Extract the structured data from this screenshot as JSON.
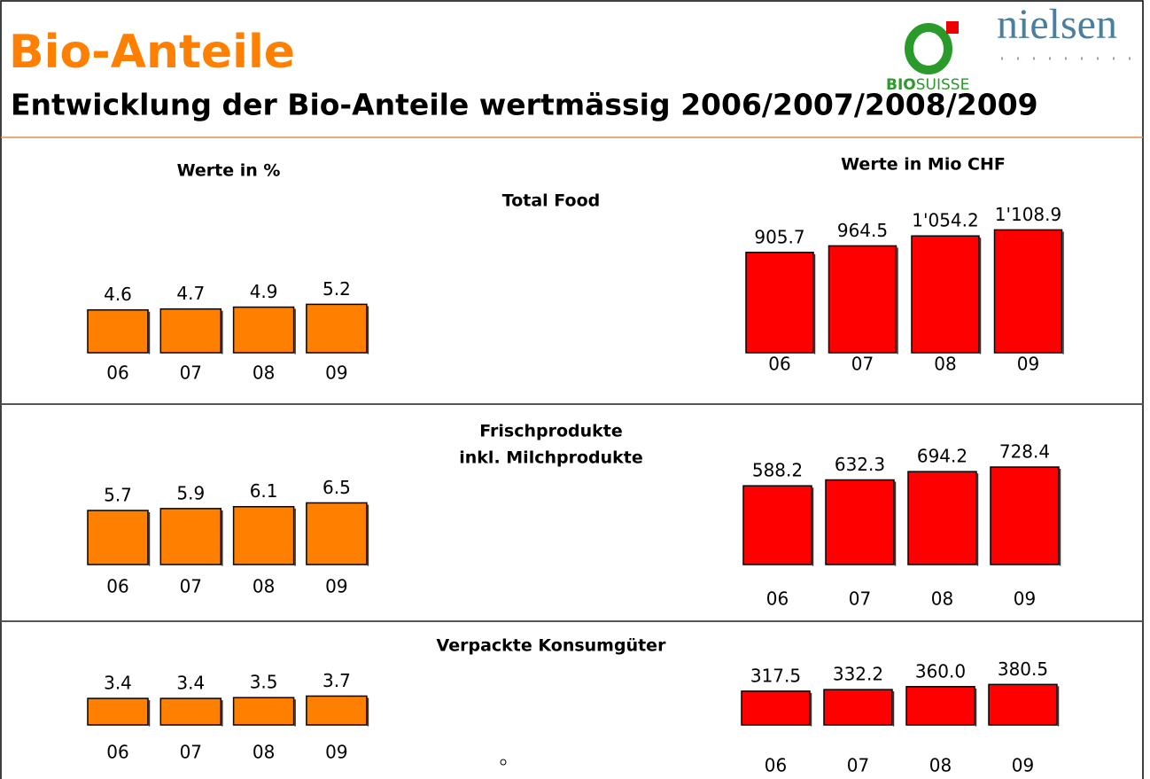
{
  "title": "Bio-Anteile",
  "subtitle": "Entwicklung der Bio-Anteile wertmässig 2006/2007/2008/2009",
  "logo_nielsen": "nielsen",
  "logo_bio": [
    "BIO",
    "SUISSE"
  ],
  "column_headers": [
    "Werte in %",
    "Werte in Mio CHF"
  ],
  "sections": [
    [
      "Total Food"
    ],
    [
      "Frischprodukte",
      "inkl. Milchprodukte"
    ],
    [
      "Verpackte Konsumgüter"
    ]
  ],
  "chart_data": [
    {
      "type": "bar",
      "categories": [
        "06",
        "07",
        "08",
        "09"
      ],
      "values": [
        4.6,
        4.7,
        4.9,
        5.2
      ],
      "color": "#ff8000"
    },
    {
      "type": "bar",
      "categories": [
        "06",
        "07",
        "08",
        "09"
      ],
      "values": [
        905.7,
        964.5,
        1054.2,
        1108.9
      ],
      "value_labels": [
        "905.7",
        "964.5",
        "1'054.2",
        "1'108.9"
      ],
      "color": "#ff0000"
    },
    {
      "type": "bar",
      "categories": [
        "06",
        "07",
        "08",
        "09"
      ],
      "values": [
        5.7,
        5.9,
        6.1,
        6.5
      ],
      "color": "#ff8000"
    },
    {
      "type": "bar",
      "categories": [
        "06",
        "07",
        "08",
        "09"
      ],
      "values": [
        588.2,
        632.3,
        694.2,
        728.4
      ],
      "color": "#ff0000"
    },
    {
      "type": "bar",
      "categories": [
        "06",
        "07",
        "08",
        "09"
      ],
      "values": [
        3.4,
        3.4,
        3.5,
        3.7
      ],
      "color": "#ff8000"
    },
    {
      "type": "bar",
      "categories": [
        "06",
        "07",
        "08",
        "09"
      ],
      "values": [
        317.5,
        332.2,
        360.0,
        380.5
      ],
      "value_labels": [
        "317.5",
        "332.2",
        "360.0",
        "380.5"
      ],
      "color": "#ff0000"
    }
  ]
}
